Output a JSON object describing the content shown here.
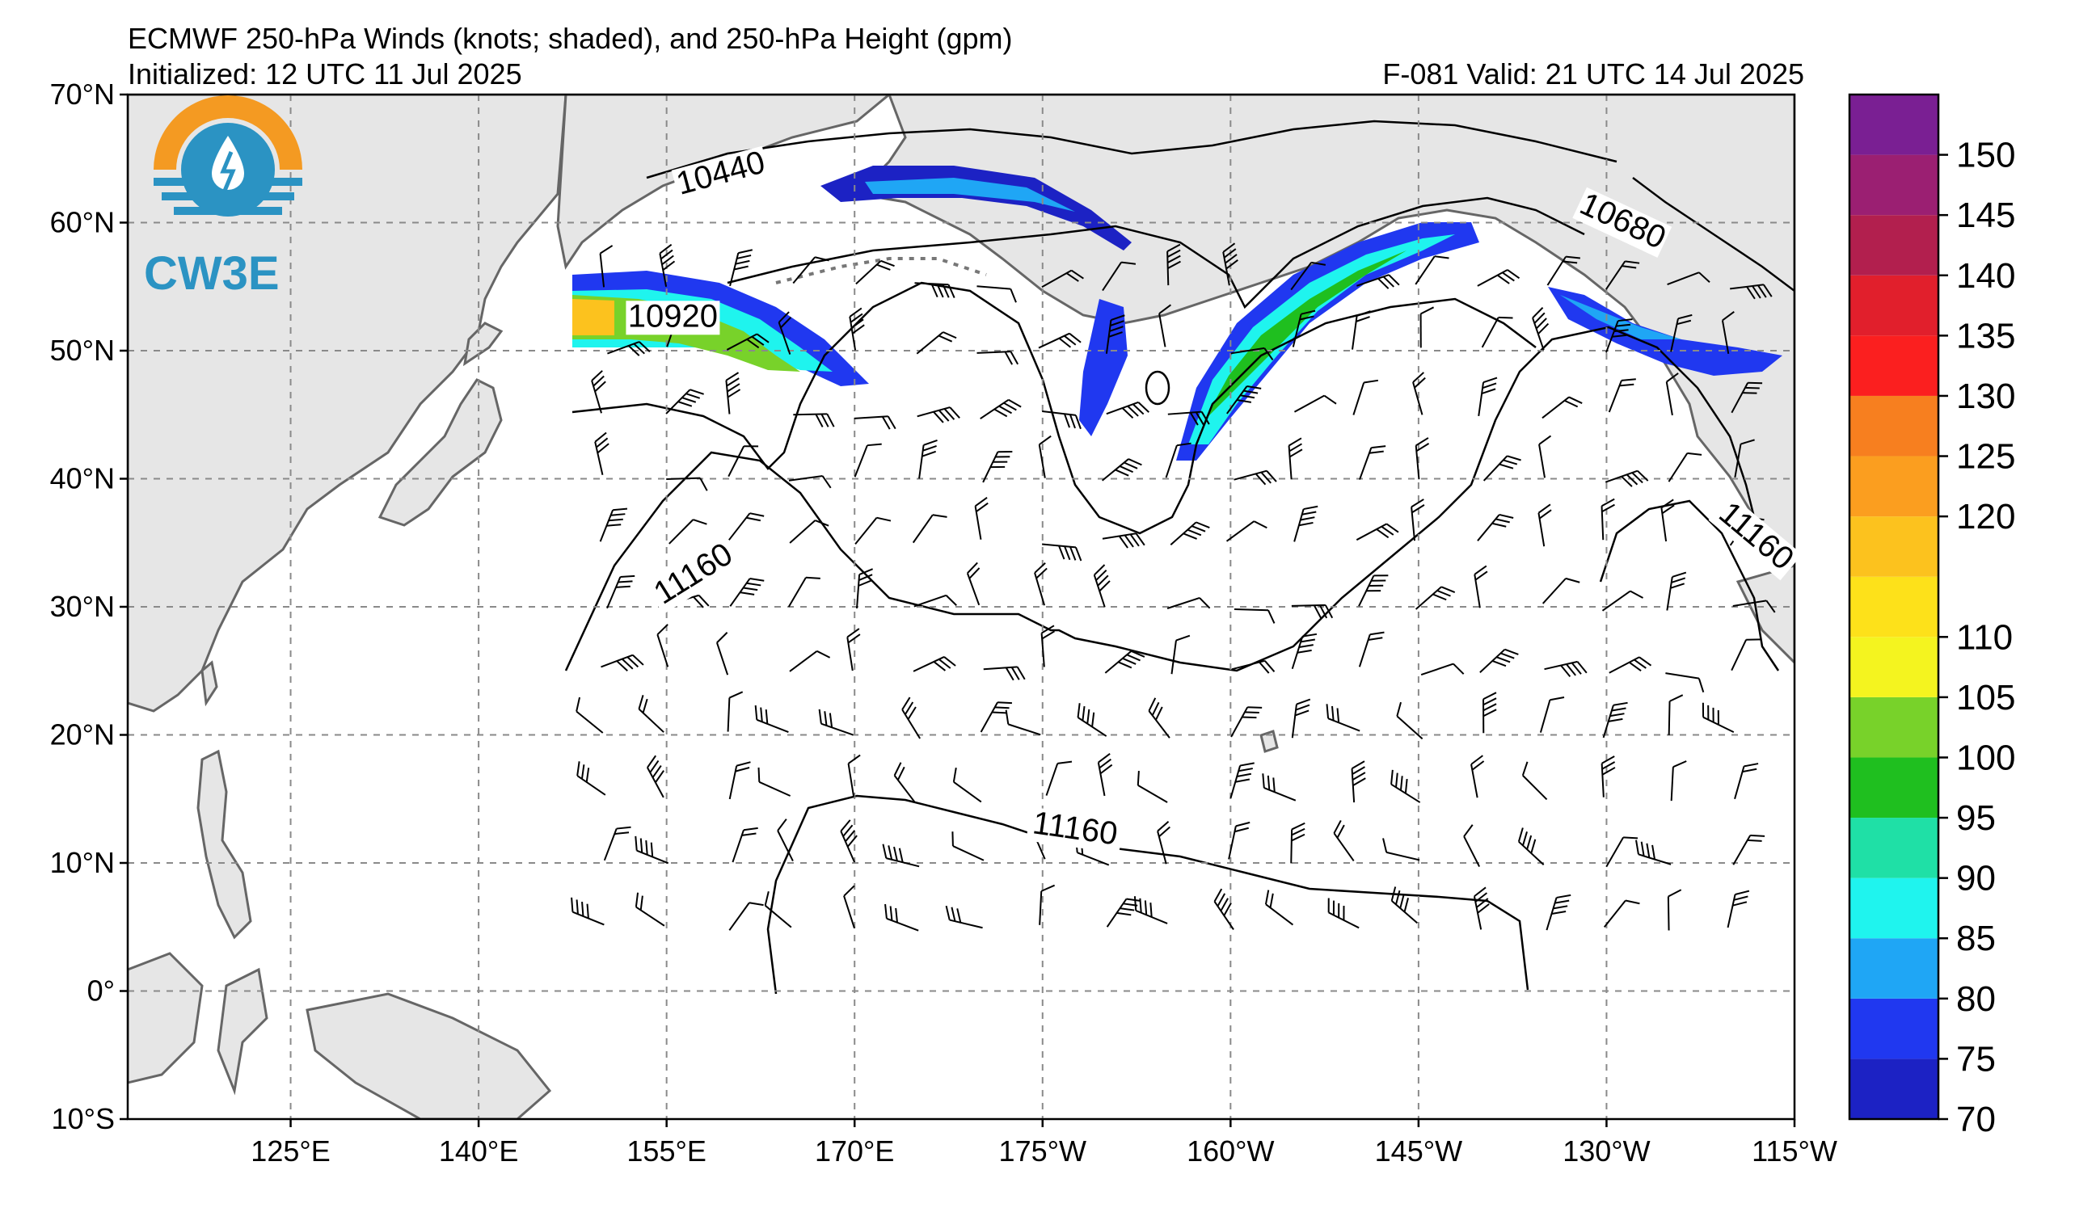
{
  "header": {
    "title": "ECMWF 250-hPa Winds (knots; shaded), and 250-hPa Height (gpm)",
    "initialized": "Initialized: 12 UTC 11 Jul 2025",
    "valid": "F-081  Valid: 21 UTC 14 Jul 2025"
  },
  "logo": {
    "text": "CW3E"
  },
  "map": {
    "lon_range": [
      112,
      245
    ],
    "lat_range": [
      -10,
      70
    ],
    "lat_ticks": [
      {
        "value": 70,
        "label": "70°N"
      },
      {
        "value": 60,
        "label": "60°N"
      },
      {
        "value": 50,
        "label": "50°N"
      },
      {
        "value": 40,
        "label": "40°N"
      },
      {
        "value": 30,
        "label": "30°N"
      },
      {
        "value": 20,
        "label": "20°N"
      },
      {
        "value": 10,
        "label": "10°N"
      },
      {
        "value": 0,
        "label": "0°"
      },
      {
        "value": -10,
        "label": "10°S"
      }
    ],
    "lon_ticks": [
      {
        "value": 125,
        "label": "125°E"
      },
      {
        "value": 140,
        "label": "140°E"
      },
      {
        "value": 155,
        "label": "155°E"
      },
      {
        "value": 170,
        "label": "170°E"
      },
      {
        "value": 185,
        "label": "175°W"
      },
      {
        "value": 200,
        "label": "160°W"
      },
      {
        "value": 215,
        "label": "145°W"
      },
      {
        "value": 230,
        "label": "130°W"
      },
      {
        "value": 245,
        "label": "115°W"
      }
    ],
    "gridlines": true,
    "contour_labels": [
      {
        "text": "10440",
        "lon": 159.5,
        "lat": 63.2,
        "angle": -15
      },
      {
        "text": "10920",
        "lon": 155.5,
        "lat": 52,
        "angle": 0
      },
      {
        "text": "10680",
        "lon": 231,
        "lat": 59.5,
        "angle": 25
      },
      {
        "text": "11160",
        "lon": 157.5,
        "lat": 32,
        "angle": -32
      },
      {
        "text": "11160",
        "lon": 187.5,
        "lat": 12,
        "angle": 8
      },
      {
        "text": "11160",
        "lon": 241.5,
        "lat": 35,
        "angle": 40
      }
    ]
  },
  "colorbar": {
    "levels": [
      70,
      75,
      80,
      85,
      90,
      95,
      100,
      105,
      110,
      115,
      120,
      125,
      130,
      135,
      140,
      145,
      150,
      155
    ],
    "colors": [
      "#1c22c4",
      "#2038f0",
      "#1fa6f5",
      "#1ff4ee",
      "#1fe0a6",
      "#1fbf1f",
      "#78d22a",
      "#f4f41f",
      "#fde11a",
      "#fcc21e",
      "#fb9e1f",
      "#f77f1f",
      "#fb1f1f",
      "#e11f2c",
      "#b21f4e",
      "#9b1f72",
      "#7a1f93"
    ],
    "labels": [
      {
        "value": 70,
        "text": "70"
      },
      {
        "value": 75,
        "text": "75"
      },
      {
        "value": 80,
        "text": "80"
      },
      {
        "value": 85,
        "text": "85"
      },
      {
        "value": 90,
        "text": "90"
      },
      {
        "value": 95,
        "text": "95"
      },
      {
        "value": 100,
        "text": "100"
      },
      {
        "value": 105,
        "text": "105"
      },
      {
        "value": 110,
        "text": "110"
      },
      {
        "value": 120,
        "text": "120"
      },
      {
        "value": 125,
        "text": "125"
      },
      {
        "value": 130,
        "text": "130"
      },
      {
        "value": 135,
        "text": "135"
      },
      {
        "value": 140,
        "text": "140"
      },
      {
        "value": 145,
        "text": "145"
      },
      {
        "value": 150,
        "text": "150"
      }
    ]
  },
  "style": {
    "land": "#e6e6e6",
    "coast": "#666666",
    "contour": "#000000",
    "grid": "#8a8a8a"
  }
}
